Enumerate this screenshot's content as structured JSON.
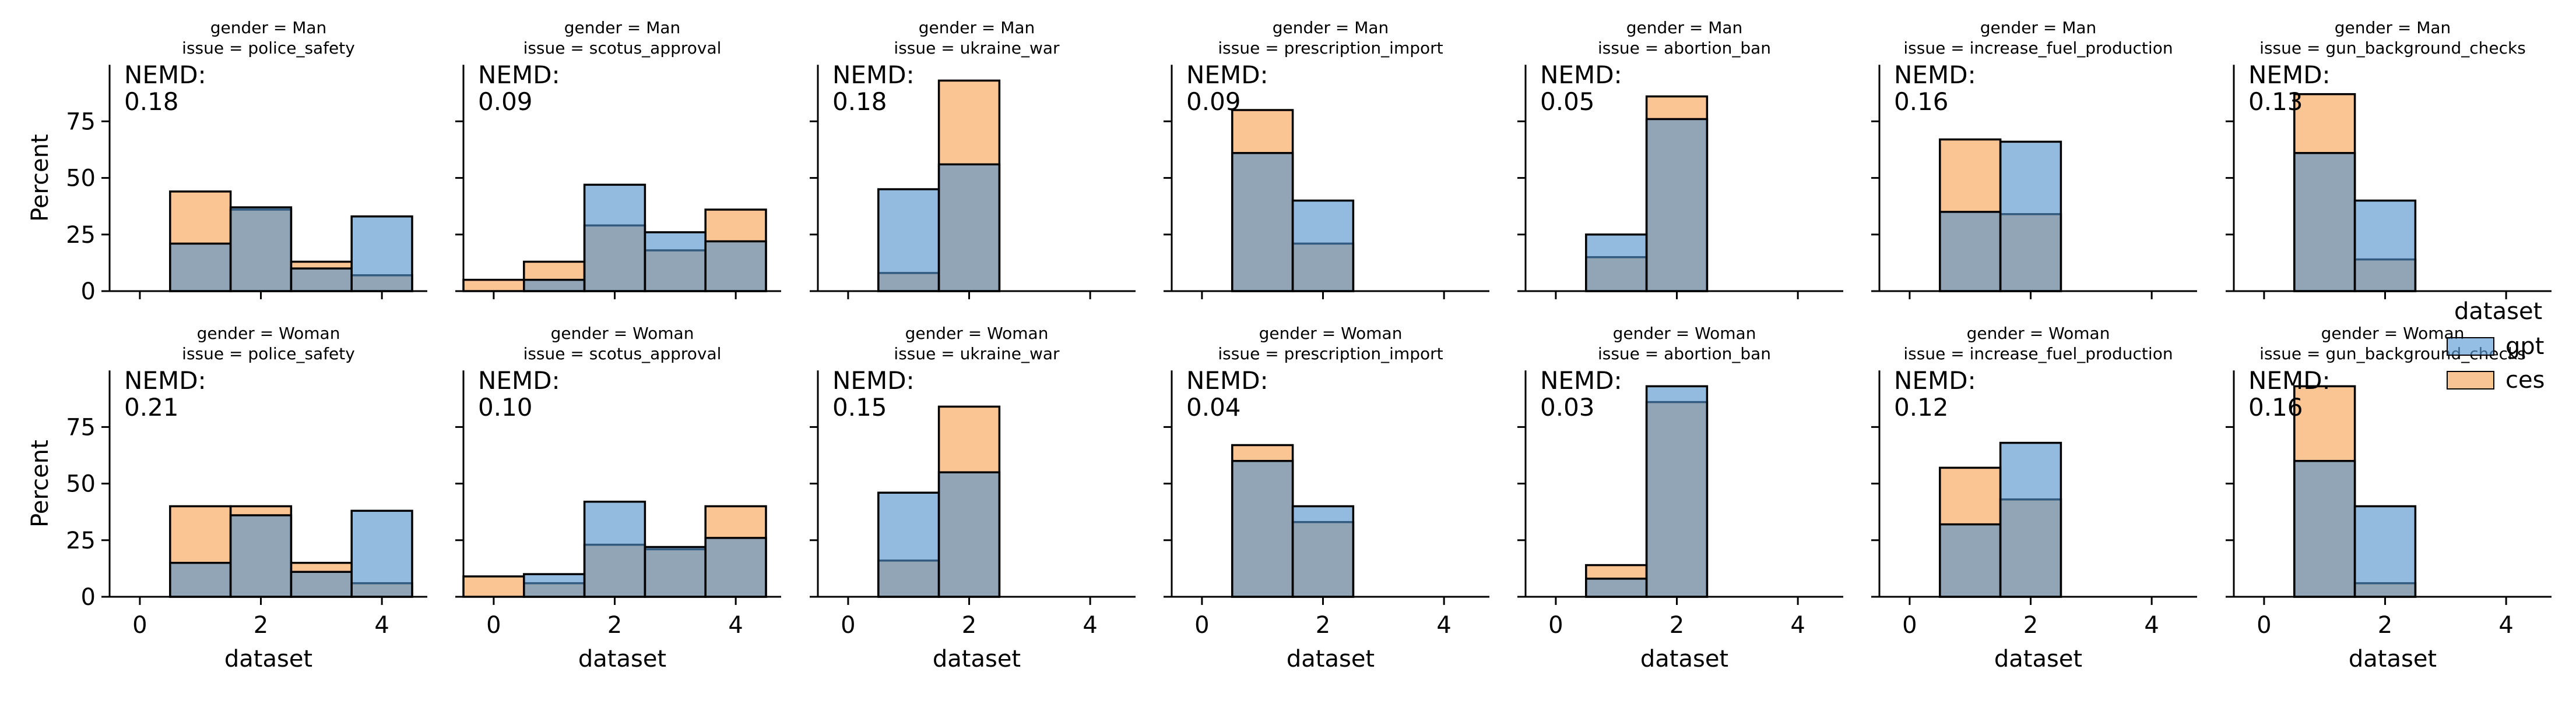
{
  "chart_data": {
    "type": "bar",
    "layout": "facet-grid",
    "ylabel": "Percent",
    "xlabel": "dataset",
    "ylim": [
      0,
      100
    ],
    "yticks": [
      0,
      25,
      50,
      75
    ],
    "xlim": [
      -0.5,
      4.75
    ],
    "xticks": [
      0,
      2,
      4
    ],
    "bin_centers": [
      0,
      1,
      2,
      3,
      4
    ],
    "legend": {
      "title": "dataset",
      "position": "right",
      "entries": [
        {
          "label": "gpt",
          "color": "#5b9bd5"
        },
        {
          "label": "ces",
          "color": "#f5a55a"
        }
      ]
    },
    "panels": [
      {
        "title_line1": "gender = Man",
        "title_line2": "issue = police_safety",
        "metric_label": "NEMD:",
        "metric_value": "0.18",
        "gpt": [
          0,
          21,
          37,
          10,
          33
        ],
        "ces": [
          0,
          44,
          36,
          13,
          7
        ]
      },
      {
        "title_line1": "gender = Man",
        "title_line2": "issue = scotus_approval",
        "metric_label": "NEMD:",
        "metric_value": "0.09",
        "gpt": [
          0,
          5,
          47,
          26,
          22
        ],
        "ces": [
          5,
          13,
          29,
          18,
          36
        ]
      },
      {
        "title_line1": "gender = Man",
        "title_line2": "issue = ukraine_war",
        "metric_label": "NEMD:",
        "metric_value": "0.18",
        "gpt": [
          0,
          45,
          56,
          0,
          0
        ],
        "ces": [
          0,
          8,
          93,
          0,
          0
        ]
      },
      {
        "title_line1": "gender = Man",
        "title_line2": "issue = prescription_import",
        "metric_label": "NEMD:",
        "metric_value": "0.09",
        "gpt": [
          0,
          61,
          40,
          0,
          0
        ],
        "ces": [
          0,
          80,
          21,
          0,
          0
        ]
      },
      {
        "title_line1": "gender = Man",
        "title_line2": "issue = abortion_ban",
        "metric_label": "NEMD:",
        "metric_value": "0.05",
        "gpt": [
          0,
          25,
          76,
          0,
          0
        ],
        "ces": [
          0,
          15,
          86,
          0,
          0
        ]
      },
      {
        "title_line1": "gender = Man",
        "title_line2": "issue = increase_fuel_production",
        "metric_label": "NEMD:",
        "metric_value": "0.16",
        "gpt": [
          0,
          35,
          66,
          0,
          0
        ],
        "ces": [
          0,
          67,
          34,
          0,
          0
        ]
      },
      {
        "title_line1": "gender = Man",
        "title_line2": "issue = gun_background_checks",
        "metric_label": "NEMD:",
        "metric_value": "0.13",
        "gpt": [
          0,
          61,
          40,
          0,
          0
        ],
        "ces": [
          0,
          87,
          14,
          0,
          0
        ]
      },
      {
        "title_line1": "gender = Woman",
        "title_line2": "issue = police_safety",
        "metric_label": "NEMD:",
        "metric_value": "0.21",
        "gpt": [
          0,
          15,
          36,
          11,
          38
        ],
        "ces": [
          0,
          40,
          40,
          15,
          6
        ]
      },
      {
        "title_line1": "gender = Woman",
        "title_line2": "issue = scotus_approval",
        "metric_label": "NEMD:",
        "metric_value": "0.10",
        "gpt": [
          0,
          10,
          42,
          22,
          26
        ],
        "ces": [
          9,
          6,
          23,
          21,
          40
        ]
      },
      {
        "title_line1": "gender = Woman",
        "title_line2": "issue = ukraine_war",
        "metric_label": "NEMD:",
        "metric_value": "0.15",
        "gpt": [
          0,
          46,
          55,
          0,
          0
        ],
        "ces": [
          0,
          16,
          84,
          0,
          0
        ]
      },
      {
        "title_line1": "gender = Woman",
        "title_line2": "issue = prescription_import",
        "metric_label": "NEMD:",
        "metric_value": "0.04",
        "gpt": [
          0,
          60,
          40,
          0,
          0
        ],
        "ces": [
          0,
          67,
          33,
          0,
          0
        ]
      },
      {
        "title_line1": "gender = Woman",
        "title_line2": "issue = abortion_ban",
        "metric_label": "NEMD:",
        "metric_value": "0.03",
        "gpt": [
          0,
          8,
          93,
          0,
          0
        ],
        "ces": [
          0,
          14,
          86,
          0,
          0
        ]
      },
      {
        "title_line1": "gender = Woman",
        "title_line2": "issue = increase_fuel_production",
        "metric_label": "NEMD:",
        "metric_value": "0.12",
        "gpt": [
          0,
          32,
          68,
          0,
          0
        ],
        "ces": [
          0,
          57,
          43,
          0,
          0
        ]
      },
      {
        "title_line1": "gender = Woman",
        "title_line2": "issue = gun_background_checks",
        "metric_label": "NEMD:",
        "metric_value": "0.16",
        "gpt": [
          0,
          60,
          40,
          0,
          0
        ],
        "ces": [
          0,
          93,
          6,
          0,
          0
        ]
      }
    ]
  }
}
